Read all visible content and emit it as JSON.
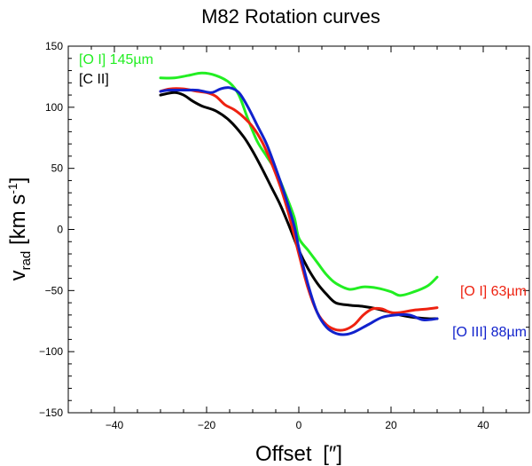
{
  "chart_data": {
    "type": "line",
    "title": "M82 Rotation curves",
    "xlabel": "Offset",
    "xlabel_unit": "[″]",
    "ylabel_main": "v",
    "ylabel_sub": "rad",
    "ylabel_unit_open": " [km s",
    "ylabel_unit_sup": "-1",
    "ylabel_unit_close": "]",
    "xlim": [
      -50,
      50
    ],
    "ylim": [
      -150,
      150
    ],
    "xticks": [
      -40,
      -20,
      0,
      20,
      40
    ],
    "yticks": [
      -150,
      -100,
      -50,
      0,
      50,
      100,
      150
    ],
    "grid": false,
    "series": [
      {
        "name": "[O I] 145µm",
        "color": "#22ee22",
        "label_anchor": "top-left",
        "x": [
          -30,
          -27,
          -24,
          -21,
          -18,
          -15,
          -13,
          -11,
          -9,
          -7,
          -5,
          -3,
          -1,
          0,
          2,
          4,
          6,
          8,
          11,
          14,
          17,
          20,
          22,
          25,
          28,
          30
        ],
        "y": [
          124,
          124,
          126,
          128,
          126,
          120,
          110,
          90,
          72,
          60,
          48,
          30,
          10,
          -7,
          -17,
          -27,
          -37,
          -44,
          -49,
          -47,
          -48,
          -51,
          -54,
          -51,
          -46,
          -39
        ]
      },
      {
        "name": "[C II]",
        "color": "#000000",
        "label_anchor": "top-left",
        "x": [
          -30,
          -27,
          -25,
          -23,
          -21,
          -18,
          -15,
          -12,
          -10,
          -8,
          -6,
          -4,
          -2,
          0,
          2,
          4,
          6,
          8,
          11,
          14,
          17,
          20,
          22,
          25,
          28,
          30
        ],
        "y": [
          110,
          112,
          110,
          105,
          101,
          97,
          89,
          76,
          64,
          50,
          35,
          20,
          2,
          -17,
          -32,
          -44,
          -53,
          -60,
          -62,
          -63,
          -65,
          -68,
          -70,
          -72,
          -73,
          -73
        ]
      },
      {
        "name": "[O I] 63µm",
        "color": "#ee2211",
        "label_anchor": "right",
        "x": [
          -30,
          -28,
          -25,
          -22,
          -20,
          -18,
          -16,
          -14,
          -12,
          -10,
          -8,
          -6,
          -4,
          -2,
          0,
          2,
          4,
          6,
          8,
          10,
          12,
          14,
          16,
          18,
          20,
          22,
          25,
          28,
          30
        ],
        "y": [
          113,
          115,
          115,
          113,
          112,
          109,
          102,
          98,
          92,
          84,
          72,
          55,
          35,
          10,
          -20,
          -48,
          -68,
          -78,
          -82,
          -82,
          -78,
          -70,
          -65,
          -65,
          -68,
          -68,
          -66,
          -65,
          -64
        ]
      },
      {
        "name": "[O III] 88µm",
        "color": "#1122cc",
        "label_anchor": "right",
        "x": [
          -30,
          -28,
          -25,
          -22,
          -19,
          -17,
          -15,
          -13,
          -11,
          -9,
          -7,
          -5,
          -3,
          -1,
          0,
          2,
          4,
          6,
          8,
          10,
          12,
          15,
          18,
          21,
          24,
          27,
          30
        ],
        "y": [
          113,
          114,
          114,
          114,
          112,
          115,
          116,
          112,
          100,
          85,
          70,
          50,
          28,
          3,
          -15,
          -45,
          -68,
          -80,
          -85,
          -86,
          -84,
          -78,
          -72,
          -70,
          -70,
          -74,
          -73
        ]
      }
    ]
  }
}
